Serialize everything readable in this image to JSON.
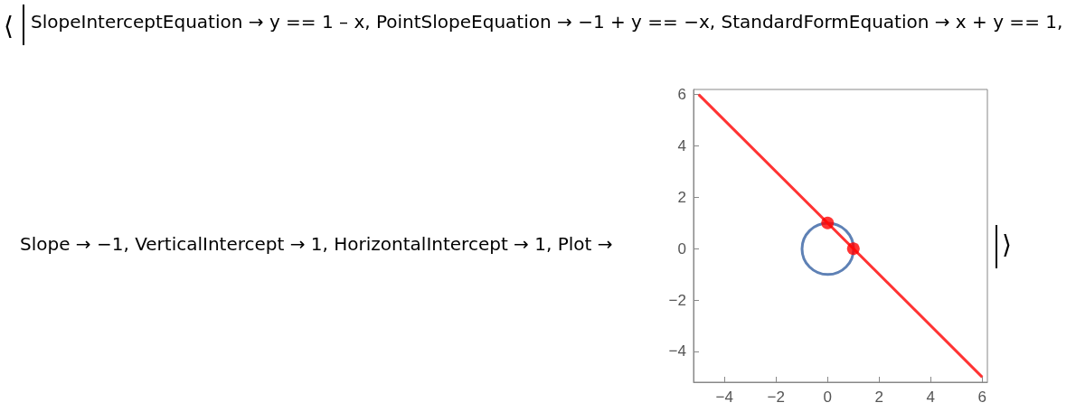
{
  "chart_data": {
    "type": "line",
    "xlim": [
      -5.2,
      6.2
    ],
    "xticks": [
      -4,
      -2,
      0,
      2,
      4,
      6
    ],
    "ylim": [
      -5.2,
      6.2
    ],
    "yticks": [
      -4,
      -2,
      0,
      2,
      4,
      6
    ],
    "marker": "none",
    "line_style": "solid",
    "annotations": [
      "⟨",
      "SlopeInterceptEquation → y == 1 – x, PointSlopeEquation → −1 + y == −x, StandardFormEquation → x + y == 1,",
      "Slope → −1, VerticalIntercept → 1, HorizontalIntercept → 1, Plot →",
      "⟩"
    ],
    "series": [
      {
        "color": "#ff3333",
        "x": [
          -5,
          6
        ],
        "values": [
          6,
          -5
        ]
      },
      {
        "type": "scatter",
        "color": "#ff0000",
        "x": [
          0,
          1
        ],
        "values": [
          1,
          0
        ],
        "marker": "circle"
      }
    ]
  }
}
